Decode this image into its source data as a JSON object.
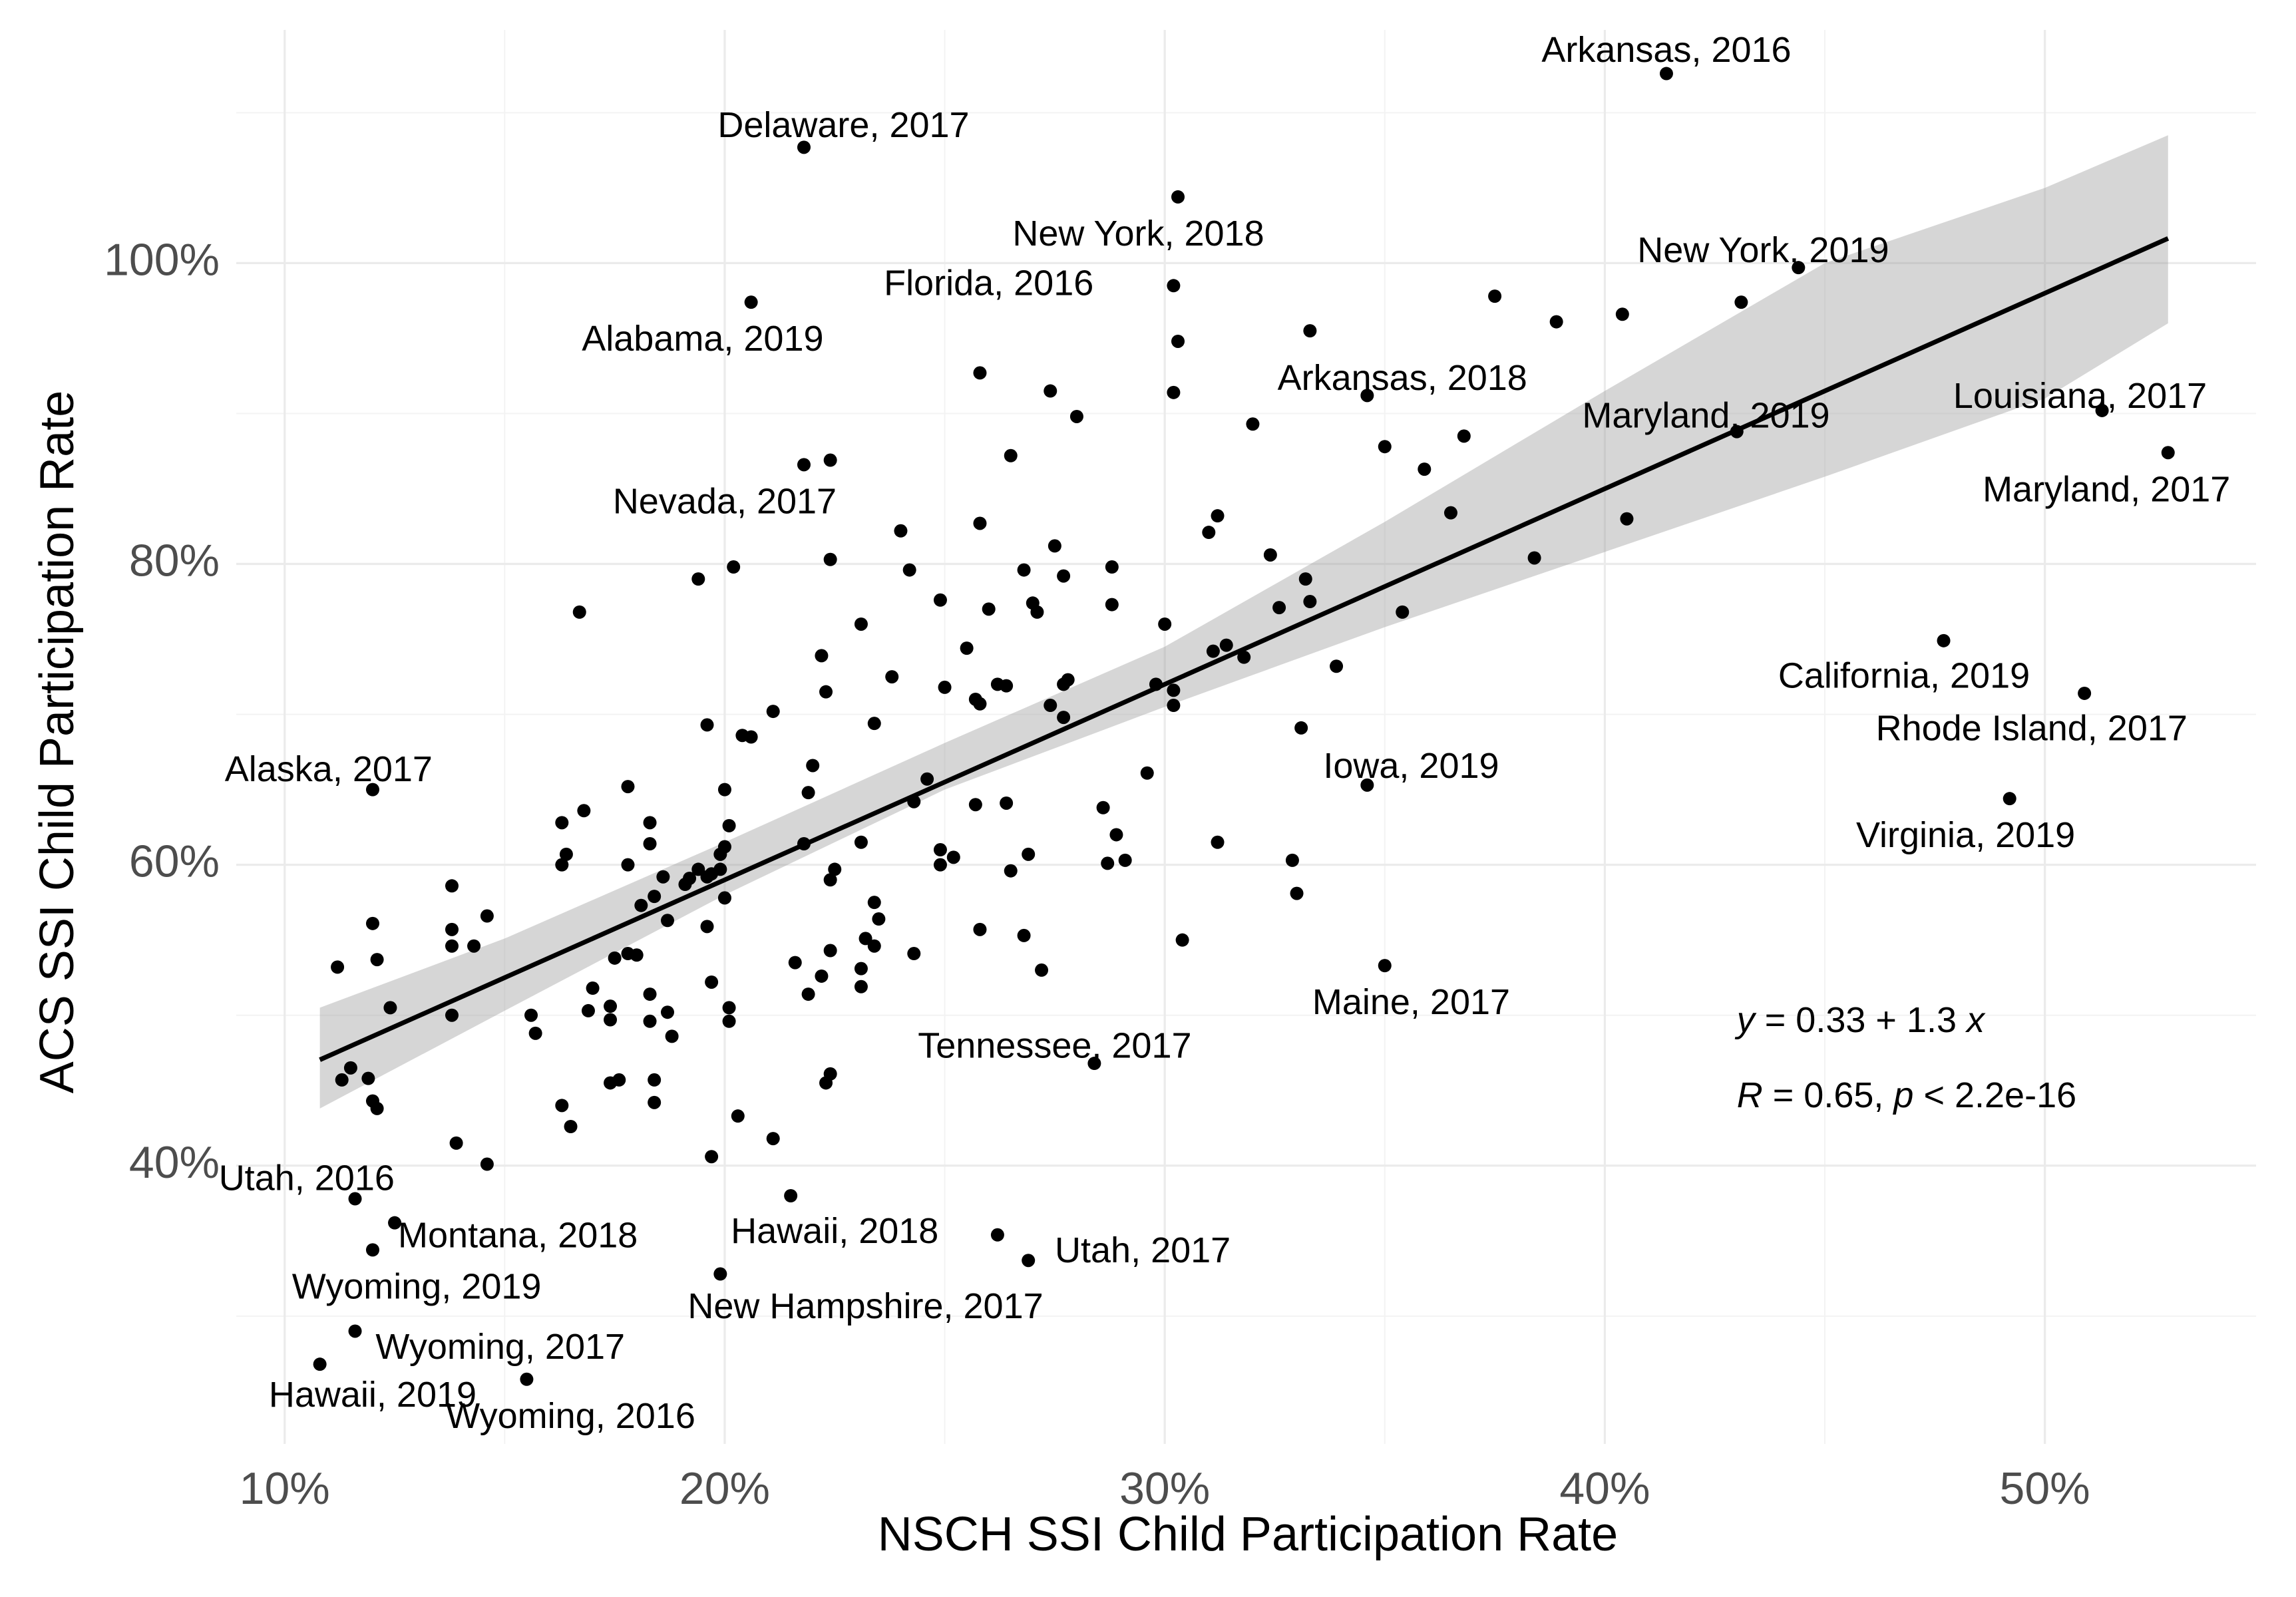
{
  "chart_data": {
    "type": "scatter",
    "title": "",
    "xlabel": "NSCH SSI Child Participation Rate",
    "ylabel": "ACS SSI Child Participation Rate",
    "xlim": [
      0.089,
      0.548
    ],
    "ylim": [
      0.215,
      1.155
    ],
    "x_ticks": [
      {
        "value": 0.1,
        "label": "10%"
      },
      {
        "value": 0.2,
        "label": "20%"
      },
      {
        "value": 0.3,
        "label": "30%"
      },
      {
        "value": 0.4,
        "label": "40%"
      },
      {
        "value": 0.5,
        "label": "50%"
      }
    ],
    "y_ticks": [
      {
        "value": 0.4,
        "label": "40%"
      },
      {
        "value": 0.6,
        "label": "60%"
      },
      {
        "value": 0.8,
        "label": "80%"
      },
      {
        "value": 1.0,
        "label": "100%"
      }
    ],
    "grid": true,
    "fit": {
      "intercept": 0.33,
      "slope": 1.3,
      "x_range": [
        0.108,
        0.528
      ],
      "band": [
        {
          "x": 0.108,
          "lo": 0.438,
          "hi": 0.505
        },
        {
          "x": 0.15,
          "lo": 0.503,
          "hi": 0.551
        },
        {
          "x": 0.2,
          "lo": 0.58,
          "hi": 0.615
        },
        {
          "x": 0.25,
          "lo": 0.65,
          "hi": 0.681
        },
        {
          "x": 0.3,
          "lo": 0.705,
          "hi": 0.745
        },
        {
          "x": 0.35,
          "lo": 0.758,
          "hi": 0.828
        },
        {
          "x": 0.4,
          "lo": 0.808,
          "hi": 0.915
        },
        {
          "x": 0.45,
          "lo": 0.858,
          "hi": 1.0
        },
        {
          "x": 0.5,
          "lo": 0.91,
          "hi": 1.05
        },
        {
          "x": 0.528,
          "lo": 0.96,
          "hi": 1.085
        }
      ]
    },
    "annotations": {
      "equation": {
        "var_y": "y",
        "text_mid": " = 0.33 + 1.3 ",
        "var_x": "x",
        "pos": {
          "x": 0.43,
          "y": 0.495
        }
      },
      "stats": {
        "var_r": "R",
        "text_mid": " = 0.65, ",
        "var_p": "p",
        "text_end": " < 2.2e-16",
        "pos": {
          "x": 0.43,
          "y": 0.445
        }
      }
    },
    "labeled_points": [
      {
        "label": "Arkansas, 2016",
        "x": 0.414,
        "y": 1.126,
        "lx": 0.414,
        "ly": 1.14
      },
      {
        "label": "Delaware, 2017",
        "x": 0.218,
        "y": 1.077,
        "lx": 0.227,
        "ly": 1.09
      },
      {
        "label": "New York, 2018",
        "x": 0.303,
        "y": 1.044,
        "lx": 0.294,
        "ly": 1.018
      },
      {
        "label": "New York, 2019",
        "x": 0.444,
        "y": 0.997,
        "lx": 0.436,
        "ly": 1.007
      },
      {
        "label": "Florida, 2016",
        "x": 0.302,
        "y": 0.985,
        "lx": 0.26,
        "ly": 0.985
      },
      {
        "label": "Alabama, 2019",
        "x": 0.206,
        "y": 0.974,
        "lx": 0.195,
        "ly": 0.948
      },
      {
        "label": "Arkansas, 2018",
        "x": 0.346,
        "y": 0.912,
        "lx": 0.354,
        "ly": 0.922
      },
      {
        "label": "Louisiana, 2017",
        "x": 0.513,
        "y": 0.902,
        "lx": 0.508,
        "ly": 0.91
      },
      {
        "label": "Maryland, 2019",
        "x": 0.43,
        "y": 0.888,
        "lx": 0.423,
        "ly": 0.897
      },
      {
        "label": "Maryland, 2017",
        "x": 0.528,
        "y": 0.874,
        "lx": 0.514,
        "ly": 0.848
      },
      {
        "label": "Nevada, 2017",
        "x": 0.218,
        "y": 0.866,
        "lx": 0.2,
        "ly": 0.84
      },
      {
        "label": "California, 2019",
        "x": 0.477,
        "y": 0.749,
        "lx": 0.468,
        "ly": 0.724
      },
      {
        "label": "Rhode Island, 2017",
        "x": 0.509,
        "y": 0.714,
        "lx": 0.497,
        "ly": 0.689
      },
      {
        "label": "Iowa, 2019",
        "x": 0.346,
        "y": 0.653,
        "lx": 0.356,
        "ly": 0.664
      },
      {
        "label": "Alaska, 2017",
        "x": 0.12,
        "y": 0.65,
        "lx": 0.11,
        "ly": 0.662
      },
      {
        "label": "Virginia, 2019",
        "x": 0.492,
        "y": 0.644,
        "lx": 0.482,
        "ly": 0.618
      },
      {
        "label": "Maine, 2017",
        "x": 0.35,
        "y": 0.533,
        "lx": 0.356,
        "ly": 0.507
      },
      {
        "label": "Tennessee, 2017",
        "x": 0.284,
        "y": 0.468,
        "lx": 0.275,
        "ly": 0.478
      },
      {
        "label": "Utah, 2016",
        "x": 0.116,
        "y": 0.378,
        "lx": 0.105,
        "ly": 0.39
      },
      {
        "label": "Montana, 2018",
        "x": 0.125,
        "y": 0.362,
        "lx": 0.153,
        "ly": 0.352
      },
      {
        "label": "Hawaii, 2018",
        "x": 0.215,
        "y": 0.38,
        "lx": 0.225,
        "ly": 0.355
      },
      {
        "label": "Utah, 2017",
        "x": 0.269,
        "y": 0.337,
        "lx": 0.295,
        "ly": 0.342
      },
      {
        "label": "Wyoming, 2019",
        "x": 0.12,
        "y": 0.344,
        "lx": 0.13,
        "ly": 0.318
      },
      {
        "label": "New Hampshire, 2017",
        "x": 0.199,
        "y": 0.328,
        "lx": 0.232,
        "ly": 0.305
      },
      {
        "label": "Wyoming, 2017",
        "x": 0.116,
        "y": 0.29,
        "lx": 0.149,
        "ly": 0.278
      },
      {
        "label": "Hawaii, 2019",
        "x": 0.108,
        "y": 0.268,
        "lx": 0.12,
        "ly": 0.246
      },
      {
        "label": "Wyoming, 2016",
        "x": 0.155,
        "y": 0.258,
        "lx": 0.165,
        "ly": 0.232
      }
    ],
    "unlabeled_points": [
      [
        0.303,
        0.948
      ],
      [
        0.302,
        0.914
      ],
      [
        0.258,
        0.927
      ],
      [
        0.274,
        0.915
      ],
      [
        0.28,
        0.898
      ],
      [
        0.333,
        0.955
      ],
      [
        0.375,
        0.978
      ],
      [
        0.389,
        0.961
      ],
      [
        0.404,
        0.966
      ],
      [
        0.431,
        0.974
      ],
      [
        0.32,
        0.893
      ],
      [
        0.35,
        0.878
      ],
      [
        0.368,
        0.885
      ],
      [
        0.359,
        0.863
      ],
      [
        0.365,
        0.834
      ],
      [
        0.405,
        0.83
      ],
      [
        0.384,
        0.804
      ],
      [
        0.224,
        0.869
      ],
      [
        0.265,
        0.872
      ],
      [
        0.258,
        0.827
      ],
      [
        0.24,
        0.822
      ],
      [
        0.275,
        0.812
      ],
      [
        0.224,
        0.803
      ],
      [
        0.242,
        0.796
      ],
      [
        0.194,
        0.79
      ],
      [
        0.202,
        0.798
      ],
      [
        0.167,
        0.768
      ],
      [
        0.268,
        0.796
      ],
      [
        0.277,
        0.792
      ],
      [
        0.288,
        0.798
      ],
      [
        0.249,
        0.776
      ],
      [
        0.27,
        0.774
      ],
      [
        0.26,
        0.77
      ],
      [
        0.271,
        0.768
      ],
      [
        0.288,
        0.773
      ],
      [
        0.31,
        0.821
      ],
      [
        0.312,
        0.832
      ],
      [
        0.324,
        0.806
      ],
      [
        0.332,
        0.79
      ],
      [
        0.326,
        0.771
      ],
      [
        0.333,
        0.775
      ],
      [
        0.354,
        0.768
      ],
      [
        0.231,
        0.76
      ],
      [
        0.3,
        0.76
      ],
      [
        0.222,
        0.739
      ],
      [
        0.255,
        0.744
      ],
      [
        0.311,
        0.742
      ],
      [
        0.314,
        0.746
      ],
      [
        0.318,
        0.738
      ],
      [
        0.339,
        0.732
      ],
      [
        0.238,
        0.725
      ],
      [
        0.223,
        0.715
      ],
      [
        0.25,
        0.718
      ],
      [
        0.262,
        0.72
      ],
      [
        0.264,
        0.719
      ],
      [
        0.278,
        0.723
      ],
      [
        0.277,
        0.72
      ],
      [
        0.298,
        0.72
      ],
      [
        0.302,
        0.716
      ],
      [
        0.274,
        0.706
      ],
      [
        0.302,
        0.706
      ],
      [
        0.257,
        0.71
      ],
      [
        0.258,
        0.707
      ],
      [
        0.211,
        0.702
      ],
      [
        0.234,
        0.694
      ],
      [
        0.277,
        0.698
      ],
      [
        0.196,
        0.693
      ],
      [
        0.204,
        0.686
      ],
      [
        0.206,
        0.685
      ],
      [
        0.331,
        0.691
      ],
      [
        0.296,
        0.661
      ],
      [
        0.246,
        0.657
      ],
      [
        0.219,
        0.648
      ],
      [
        0.2,
        0.65
      ],
      [
        0.178,
        0.652
      ],
      [
        0.243,
        0.642
      ],
      [
        0.257,
        0.64
      ],
      [
        0.264,
        0.641
      ],
      [
        0.22,
        0.666
      ],
      [
        0.168,
        0.636
      ],
      [
        0.163,
        0.628
      ],
      [
        0.183,
        0.628
      ],
      [
        0.201,
        0.626
      ],
      [
        0.164,
        0.607
      ],
      [
        0.163,
        0.6
      ],
      [
        0.178,
        0.6
      ],
      [
        0.183,
        0.614
      ],
      [
        0.2,
        0.612
      ],
      [
        0.199,
        0.607
      ],
      [
        0.218,
        0.614
      ],
      [
        0.231,
        0.615
      ],
      [
        0.249,
        0.61
      ],
      [
        0.252,
        0.605
      ],
      [
        0.249,
        0.6
      ],
      [
        0.225,
        0.597
      ],
      [
        0.186,
        0.592
      ],
      [
        0.192,
        0.591
      ],
      [
        0.194,
        0.597
      ],
      [
        0.197,
        0.594
      ],
      [
        0.199,
        0.597
      ],
      [
        0.196,
        0.592
      ],
      [
        0.191,
        0.587
      ],
      [
        0.224,
        0.59
      ],
      [
        0.265,
        0.596
      ],
      [
        0.269,
        0.607
      ],
      [
        0.287,
        0.601
      ],
      [
        0.291,
        0.603
      ],
      [
        0.289,
        0.62
      ],
      [
        0.286,
        0.638
      ],
      [
        0.312,
        0.615
      ],
      [
        0.329,
        0.603
      ],
      [
        0.33,
        0.581
      ],
      [
        0.138,
        0.586
      ],
      [
        0.184,
        0.579
      ],
      [
        0.2,
        0.578
      ],
      [
        0.181,
        0.573
      ],
      [
        0.234,
        0.575
      ],
      [
        0.187,
        0.563
      ],
      [
        0.235,
        0.564
      ],
      [
        0.196,
        0.559
      ],
      [
        0.258,
        0.557
      ],
      [
        0.268,
        0.553
      ],
      [
        0.304,
        0.55
      ],
      [
        0.232,
        0.551
      ],
      [
        0.234,
        0.546
      ],
      [
        0.224,
        0.543
      ],
      [
        0.243,
        0.541
      ],
      [
        0.216,
        0.535
      ],
      [
        0.12,
        0.561
      ],
      [
        0.138,
        0.557
      ],
      [
        0.146,
        0.566
      ],
      [
        0.138,
        0.546
      ],
      [
        0.143,
        0.546
      ],
      [
        0.121,
        0.537
      ],
      [
        0.112,
        0.532
      ],
      [
        0.175,
        0.538
      ],
      [
        0.178,
        0.541
      ],
      [
        0.18,
        0.54
      ],
      [
        0.231,
        0.531
      ],
      [
        0.231,
        0.519
      ],
      [
        0.222,
        0.526
      ],
      [
        0.219,
        0.514
      ],
      [
        0.272,
        0.53
      ],
      [
        0.197,
        0.522
      ],
      [
        0.17,
        0.518
      ],
      [
        0.183,
        0.514
      ],
      [
        0.174,
        0.506
      ],
      [
        0.201,
        0.505
      ],
      [
        0.124,
        0.505
      ],
      [
        0.138,
        0.5
      ],
      [
        0.156,
        0.5
      ],
      [
        0.157,
        0.488
      ],
      [
        0.187,
        0.502
      ],
      [
        0.169,
        0.503
      ],
      [
        0.174,
        0.497
      ],
      [
        0.183,
        0.496
      ],
      [
        0.188,
        0.486
      ],
      [
        0.201,
        0.496
      ],
      [
        0.113,
        0.457
      ],
      [
        0.115,
        0.465
      ],
      [
        0.119,
        0.458
      ],
      [
        0.12,
        0.443
      ],
      [
        0.121,
        0.438
      ],
      [
        0.174,
        0.455
      ],
      [
        0.176,
        0.457
      ],
      [
        0.184,
        0.457
      ],
      [
        0.163,
        0.44
      ],
      [
        0.184,
        0.442
      ],
      [
        0.165,
        0.426
      ],
      [
        0.203,
        0.433
      ],
      [
        0.223,
        0.455
      ],
      [
        0.224,
        0.461
      ],
      [
        0.139,
        0.415
      ],
      [
        0.211,
        0.418
      ],
      [
        0.197,
        0.406
      ],
      [
        0.146,
        0.401
      ],
      [
        0.262,
        0.354
      ]
    ]
  }
}
